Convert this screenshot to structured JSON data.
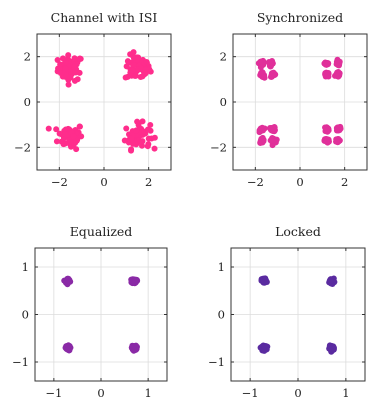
{
  "chart_data": [
    {
      "type": "scatter",
      "title": "Channel with ISI",
      "xlim": [
        -3,
        3
      ],
      "ylim": [
        -3,
        3
      ],
      "xticks": [
        -2,
        0,
        2
      ],
      "yticks": [
        -2,
        0,
        2
      ],
      "xtick_labels": [
        "−2",
        "0",
        "2"
      ],
      "ytick_labels": [
        "−2",
        "0",
        "2"
      ],
      "grid": true,
      "color": "#ff2d8c",
      "clusters": [
        {
          "center": [
            -1.5,
            1.5
          ],
          "spread": 0.28,
          "points": 60
        },
        {
          "center": [
            1.5,
            1.5
          ],
          "spread": 0.28,
          "points": 60
        },
        {
          "center": [
            -1.5,
            -1.5
          ],
          "spread": 0.28,
          "points": 60
        },
        {
          "center": [
            1.5,
            -1.5
          ],
          "spread": 0.28,
          "points": 60
        }
      ]
    },
    {
      "type": "scatter",
      "title": "Synchronized",
      "xlim": [
        -3,
        3
      ],
      "ylim": [
        -3,
        3
      ],
      "xticks": [
        -2,
        0,
        2
      ],
      "yticks": [
        -2,
        0,
        2
      ],
      "xtick_labels": [
        "−2",
        "0",
        "2"
      ],
      "ytick_labels": [
        "−2",
        "0",
        "2"
      ],
      "grid": true,
      "color": "#e0309a",
      "clusters": [
        {
          "center": [
            -1.7,
            1.7
          ],
          "spread": 0.05,
          "points": 25
        },
        {
          "center": [
            -1.3,
            1.7
          ],
          "spread": 0.05,
          "points": 25
        },
        {
          "center": [
            -1.7,
            1.2
          ],
          "spread": 0.05,
          "points": 25
        },
        {
          "center": [
            -1.2,
            1.2
          ],
          "spread": 0.05,
          "points": 25
        },
        {
          "center": [
            1.2,
            1.7
          ],
          "spread": 0.05,
          "points": 25
        },
        {
          "center": [
            1.7,
            1.7
          ],
          "spread": 0.05,
          "points": 25
        },
        {
          "center": [
            1.2,
            1.2
          ],
          "spread": 0.05,
          "points": 25
        },
        {
          "center": [
            1.7,
            1.2
          ],
          "spread": 0.05,
          "points": 25
        },
        {
          "center": [
            -1.7,
            -1.2
          ],
          "spread": 0.05,
          "points": 25
        },
        {
          "center": [
            -1.2,
            -1.2
          ],
          "spread": 0.05,
          "points": 25
        },
        {
          "center": [
            -1.7,
            -1.7
          ],
          "spread": 0.05,
          "points": 25
        },
        {
          "center": [
            -1.2,
            -1.7
          ],
          "spread": 0.05,
          "points": 25
        },
        {
          "center": [
            1.2,
            -1.2
          ],
          "spread": 0.05,
          "points": 25
        },
        {
          "center": [
            1.7,
            -1.2
          ],
          "spread": 0.05,
          "points": 25
        },
        {
          "center": [
            1.2,
            -1.7
          ],
          "spread": 0.05,
          "points": 25
        },
        {
          "center": [
            1.7,
            -1.7
          ],
          "spread": 0.05,
          "points": 25
        }
      ]
    },
    {
      "type": "scatter",
      "title": "Equalized",
      "xlim": [
        -1.4,
        1.4
      ],
      "ylim": [
        -1.4,
        1.4
      ],
      "xticks": [
        -1,
        0,
        1
      ],
      "yticks": [
        -1,
        0,
        1
      ],
      "xtick_labels": [
        "−1",
        "0",
        "1"
      ],
      "ytick_labels": [
        "−1",
        "0",
        "1"
      ],
      "grid": true,
      "color": "#8a2aa6",
      "clusters": [
        {
          "center": [
            -0.707,
            0.707
          ],
          "spread": 0.025,
          "points": 50
        },
        {
          "center": [
            0.707,
            0.707
          ],
          "spread": 0.025,
          "points": 50
        },
        {
          "center": [
            -0.707,
            -0.707
          ],
          "spread": 0.025,
          "points": 50
        },
        {
          "center": [
            0.707,
            -0.707
          ],
          "spread": 0.025,
          "points": 50
        }
      ]
    },
    {
      "type": "scatter",
      "title": "Locked",
      "xlim": [
        -1.4,
        1.4
      ],
      "ylim": [
        -1.4,
        1.4
      ],
      "xticks": [
        -1,
        0,
        1
      ],
      "yticks": [
        -1,
        0,
        1
      ],
      "xtick_labels": [
        "−1",
        "0",
        "1"
      ],
      "ytick_labels": [
        "−1",
        "0",
        "1"
      ],
      "grid": true,
      "color": "#5a2ba0",
      "clusters": [
        {
          "center": [
            -0.707,
            0.707
          ],
          "spread": 0.025,
          "points": 50
        },
        {
          "center": [
            0.707,
            0.707
          ],
          "spread": 0.025,
          "points": 50
        },
        {
          "center": [
            -0.707,
            -0.707
          ],
          "spread": 0.025,
          "points": 50
        },
        {
          "center": [
            0.707,
            -0.707
          ],
          "spread": 0.025,
          "points": 50
        }
      ]
    }
  ]
}
